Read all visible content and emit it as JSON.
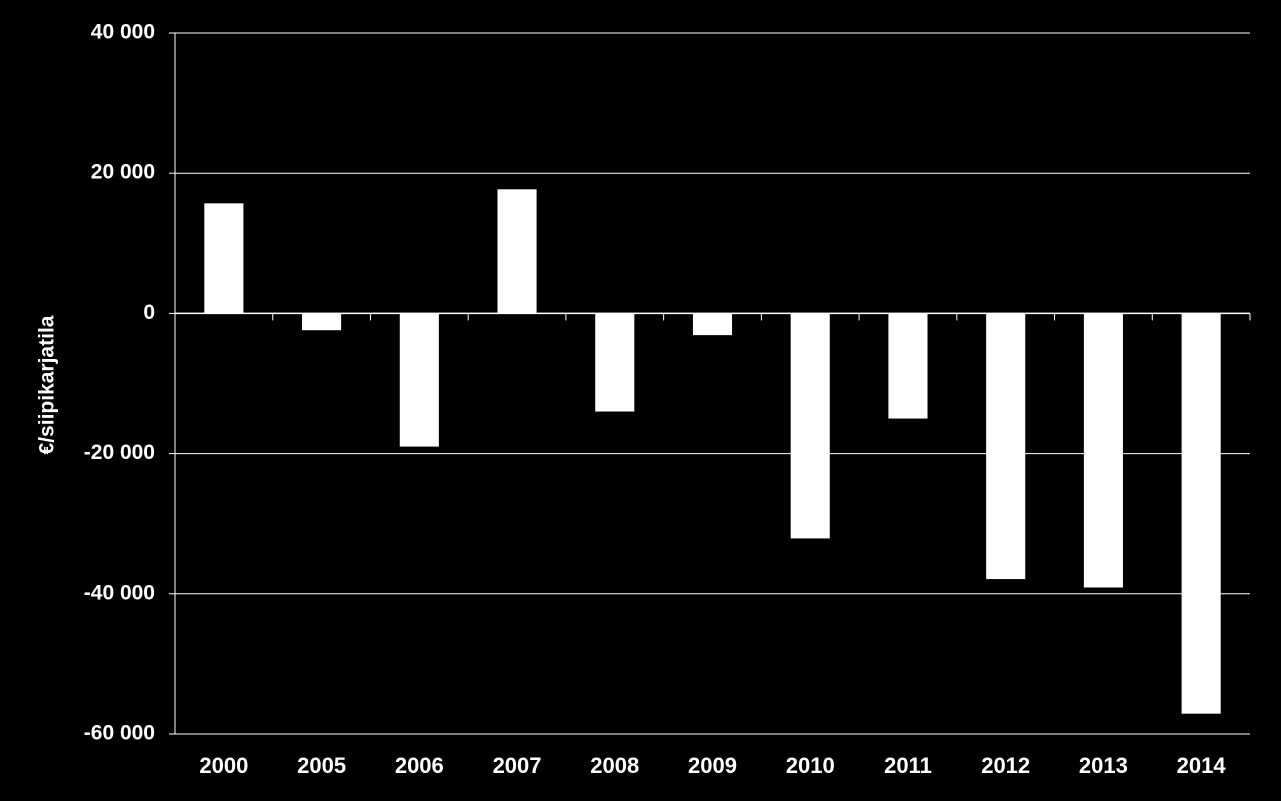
{
  "chart_data": {
    "type": "bar",
    "y_label": "€/siipikarjatila",
    "categories": [
      "2000",
      "2005",
      "2006",
      "2007",
      "2008",
      "2009",
      "2010",
      "2011",
      "2012",
      "2013",
      "2014"
    ],
    "values": [
      15700,
      -2400,
      -19000,
      17700,
      -14000,
      -3100,
      -32100,
      -15000,
      -37900,
      -39100,
      -57100
    ],
    "color": "#ffffff",
    "ylim": [
      -60000,
      40000
    ],
    "yticks": [
      {
        "value": -60000,
        "label": "-60 000"
      },
      {
        "value": -40000,
        "label": "-40 000"
      },
      {
        "value": -20000,
        "label": "-20 000"
      },
      0,
      {
        "value": 20000,
        "label": "20 000"
      },
      {
        "value": 40000,
        "label": "40 000"
      }
    ],
    "grid": true
  }
}
